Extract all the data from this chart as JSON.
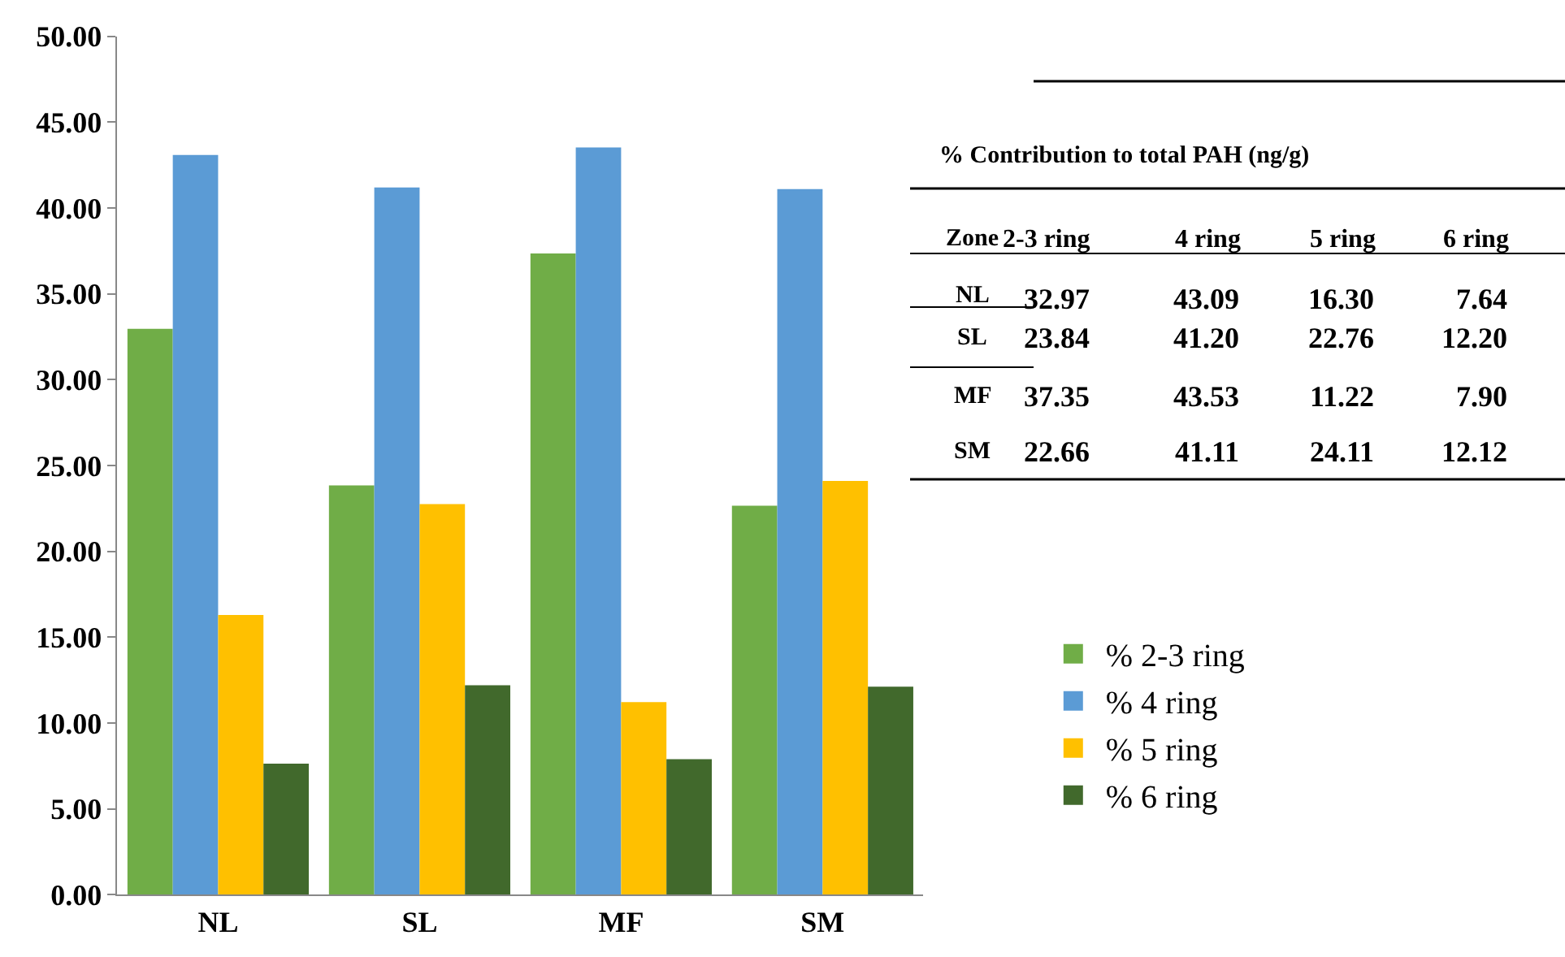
{
  "chart_data": [
    {
      "type": "bar",
      "categories": [
        "NL",
        "SL",
        "MF",
        "SM"
      ],
      "series": [
        {
          "name": "% 2-3 ring",
          "color": "#70ad47",
          "values": [
            32.97,
            23.84,
            37.35,
            22.66
          ]
        },
        {
          "name": "% 4 ring",
          "color": "#5b9bd5",
          "values": [
            43.09,
            41.2,
            43.53,
            41.11
          ]
        },
        {
          "name": "% 5 ring",
          "color": "#ffc000",
          "values": [
            16.3,
            22.76,
            11.22,
            24.11
          ]
        },
        {
          "name": "% 6 ring",
          "color": "#41692c",
          "values": [
            7.64,
            12.2,
            7.9,
            12.12
          ]
        }
      ],
      "ylim": [
        0,
        50
      ],
      "yticks": [
        {
          "value": 0,
          "label": "0.00"
        },
        {
          "value": 5,
          "label": "5.00"
        },
        {
          "value": 10,
          "label": "10.00"
        },
        {
          "value": 15,
          "label": "15.00"
        },
        {
          "value": 20,
          "label": "20.00"
        },
        {
          "value": 25,
          "label": "25.00"
        },
        {
          "value": 30,
          "label": "30.00"
        },
        {
          "value": 35,
          "label": "35.00"
        },
        {
          "value": 40,
          "label": "40.00"
        },
        {
          "value": 45,
          "label": "45.00"
        },
        {
          "value": 50,
          "label": "50.00"
        }
      ],
      "grid": false,
      "legend": "right"
    },
    {
      "type": "other",
      "title": "% Contribution to total PAH (ng/g)",
      "annotations": [
        "Zone",
        "2-3 ring",
        "4 ring",
        "5 ring",
        "6 ring",
        "NL",
        "32.97",
        "43.09",
        "16.30",
        "7.64",
        "SL",
        "23.84",
        "41.20",
        "22.76",
        "12.20",
        "MF",
        "37.35",
        "43.53",
        "11.22",
        "7.90",
        "SM",
        "22.66",
        "41.11",
        "24.11",
        "12.12"
      ]
    }
  ]
}
